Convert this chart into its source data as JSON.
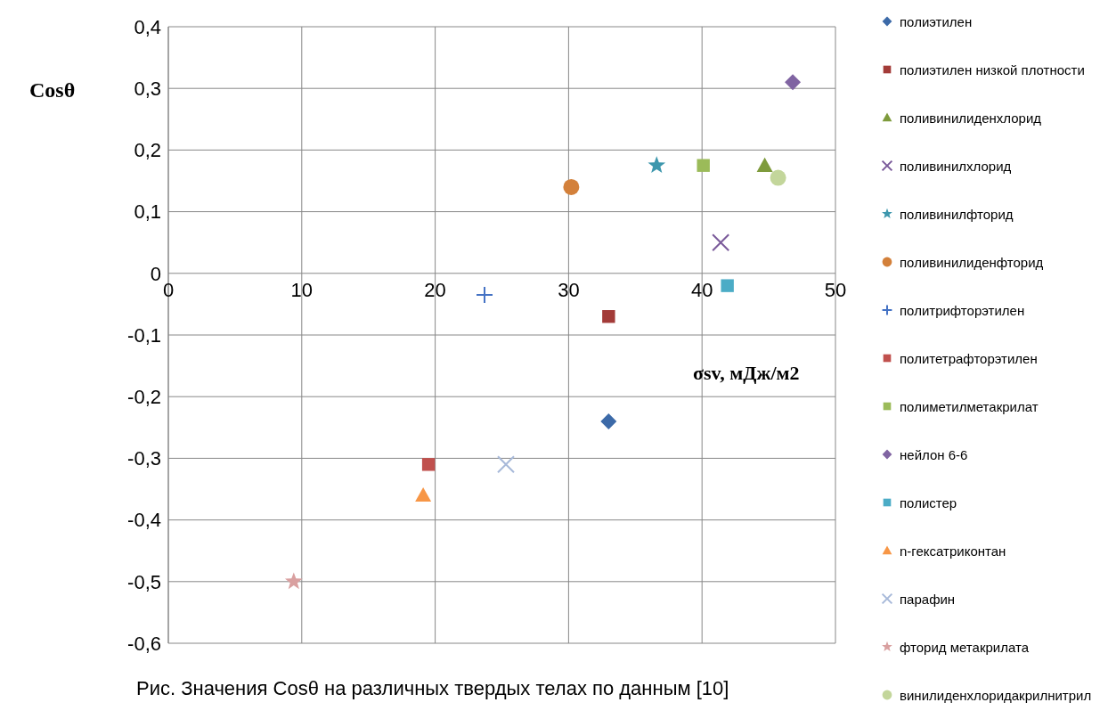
{
  "chart_data": {
    "type": "scatter",
    "xlabel": "σsv, мДж/м2",
    "ylabel": "Cosθ",
    "annotations": [
      "Рис. Значения Cosθ на различных твердых телах по данным [10]"
    ],
    "xlim": [
      0,
      50
    ],
    "xticks": [
      0,
      10,
      20,
      30,
      40,
      50
    ],
    "ylim": [
      -0.6,
      0.4
    ],
    "yticks": [
      {
        "value": 0.4,
        "label": "0,4"
      },
      {
        "value": 0.3,
        "label": "0,3"
      },
      {
        "value": 0.2,
        "label": "0,2"
      },
      {
        "value": 0.1,
        "label": "0,1"
      },
      {
        "value": 0,
        "label": "0"
      },
      {
        "value": -0.1,
        "label": "-0,1"
      },
      {
        "value": -0.2,
        "label": "-0,2"
      },
      {
        "value": -0.3,
        "label": "-0,3"
      },
      {
        "value": -0.4,
        "label": "-0,4"
      },
      {
        "value": -0.5,
        "label": "-0,5"
      },
      {
        "value": -0.6,
        "label": "-0,6"
      }
    ],
    "grid": true,
    "legend": "right",
    "series": [
      {
        "name": "полиэтилен",
        "color": "#3c6aa8",
        "marker": "diamond",
        "x": [
          33.0
        ],
        "values": [
          -0.24
        ]
      },
      {
        "name": "полиэтилен низкой плотности",
        "color": "#a33b38",
        "marker": "square",
        "x": [
          33.0
        ],
        "values": [
          -0.07
        ]
      },
      {
        "name": "поливинилиденхлорид",
        "color": "#7e9b3c",
        "marker": "triangle",
        "x": [
          44.7
        ],
        "values": [
          0.175
        ]
      },
      {
        "name": "поливинилхлорид",
        "color": "#7a5a9a",
        "marker": "cross",
        "x": [
          41.4
        ],
        "values": [
          0.05
        ]
      },
      {
        "name": "поливинилфторид",
        "color": "#3d97ad",
        "marker": "star",
        "x": [
          36.6
        ],
        "values": [
          0.175
        ]
      },
      {
        "name": "поливинилиденфторид",
        "color": "#d3803a",
        "marker": "circle",
        "x": [
          30.2
        ],
        "values": [
          0.14
        ]
      },
      {
        "name": "политрифторэтилен",
        "color": "#4472c4",
        "marker": "plus",
        "x": [
          23.7
        ],
        "values": [
          -0.035
        ]
      },
      {
        "name": "политетрафторэтилен",
        "color": "#c0504d",
        "marker": "square",
        "x": [
          19.5
        ],
        "values": [
          -0.31
        ]
      },
      {
        "name": "полиметилметакрилат",
        "color": "#9bbb59",
        "marker": "square",
        "x": [
          40.1
        ],
        "values": [
          0.175
        ]
      },
      {
        "name": "нейлон 6-6",
        "color": "#8064a2",
        "marker": "diamond",
        "x": [
          46.8
        ],
        "values": [
          0.31
        ]
      },
      {
        "name": "полистер",
        "color": "#4bacc6",
        "marker": "square",
        "x": [
          41.9
        ],
        "values": [
          -0.02
        ]
      },
      {
        "name": "n-гексатриконтан",
        "color": "#f79646",
        "marker": "triangle",
        "x": [
          19.1
        ],
        "values": [
          -0.36
        ]
      },
      {
        "name": "парафин",
        "color": "#a7b9d9",
        "marker": "cross",
        "x": [
          25.3
        ],
        "values": [
          -0.31
        ]
      },
      {
        "name": "фторид метакрилата",
        "color": "#d9a0a0",
        "marker": "star",
        "x": [
          9.4
        ],
        "values": [
          -0.5
        ]
      },
      {
        "name": "винилиденхлоридакрилнитрил",
        "color": "#c3d69b",
        "marker": "circle",
        "x": [
          45.7
        ],
        "values": [
          0.155
        ]
      }
    ]
  }
}
